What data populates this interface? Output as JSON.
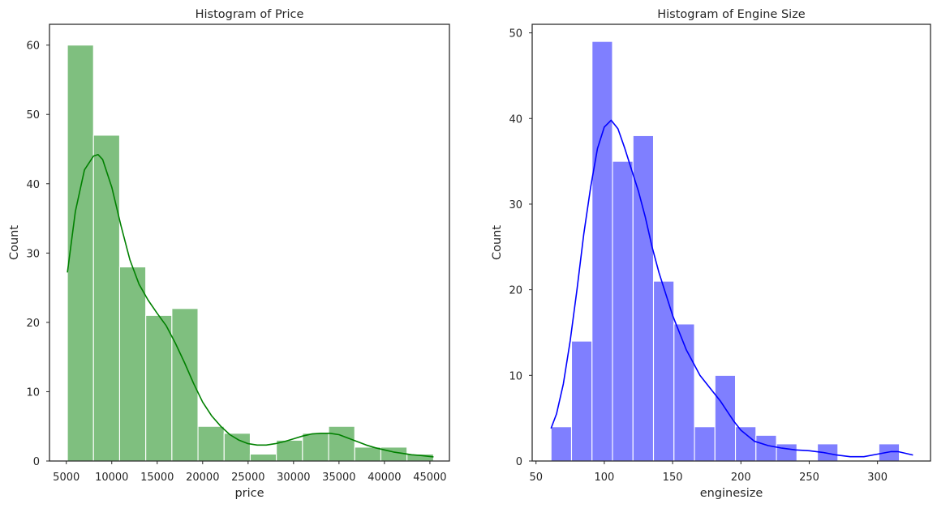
{
  "chart_data": [
    {
      "type": "bar",
      "title": "Histogram of Price",
      "xlabel": "price",
      "ylabel": "Count",
      "xlim": [
        3150,
        47150
      ],
      "ylim": [
        0,
        63
      ],
      "xticks": [
        5000,
        10000,
        15000,
        20000,
        25000,
        30000,
        35000,
        40000,
        45000
      ],
      "yticks": [
        0,
        10,
        20,
        30,
        40,
        50,
        60
      ],
      "grid": false,
      "bar_color": "#008000",
      "bar_opacity": 0.5,
      "kde_color": "#008000",
      "bins": [
        {
          "start": 5118,
          "end": 7992,
          "count": 60
        },
        {
          "start": 7992,
          "end": 10866,
          "count": 47
        },
        {
          "start": 10866,
          "end": 13740,
          "count": 28
        },
        {
          "start": 13740,
          "end": 16614,
          "count": 21
        },
        {
          "start": 16614,
          "end": 19488,
          "count": 22
        },
        {
          "start": 19488,
          "end": 22362,
          "count": 5
        },
        {
          "start": 22362,
          "end": 25236,
          "count": 4
        },
        {
          "start": 25236,
          "end": 28110,
          "count": 1
        },
        {
          "start": 28110,
          "end": 30984,
          "count": 3
        },
        {
          "start": 30984,
          "end": 33858,
          "count": 4
        },
        {
          "start": 33858,
          "end": 36732,
          "count": 5
        },
        {
          "start": 36732,
          "end": 39606,
          "count": 2
        },
        {
          "start": 39606,
          "end": 42480,
          "count": 2
        },
        {
          "start": 42480,
          "end": 45400,
          "count": 1
        }
      ],
      "kde": {
        "x": [
          5118,
          6000,
          7000,
          8000,
          8500,
          9000,
          10000,
          11000,
          12000,
          13000,
          14000,
          15000,
          16000,
          17000,
          18000,
          19000,
          20000,
          21000,
          22000,
          23000,
          24000,
          25000,
          26000,
          27000,
          28000,
          29000,
          30000,
          31000,
          32000,
          33000,
          34000,
          35000,
          36000,
          37000,
          38000,
          39000,
          40000,
          41000,
          42000,
          43000,
          44000,
          45400
        ],
        "y": [
          27.2,
          36.0,
          42.0,
          44.0,
          44.2,
          43.5,
          39.5,
          34.0,
          29.0,
          25.5,
          23.2,
          21.3,
          19.5,
          17.0,
          14.2,
          11.2,
          8.5,
          6.5,
          5.0,
          3.8,
          3.0,
          2.5,
          2.3,
          2.3,
          2.5,
          2.8,
          3.2,
          3.6,
          3.9,
          4.0,
          4.0,
          3.8,
          3.3,
          2.8,
          2.3,
          1.9,
          1.6,
          1.3,
          1.1,
          0.9,
          0.8,
          0.6
        ]
      }
    },
    {
      "type": "bar",
      "title": "Histogram of Engine Size",
      "xlabel": "enginesize",
      "ylabel": "Count",
      "xlim": [
        47.2,
        338.8
      ],
      "ylim": [
        0,
        51
      ],
      "xticks": [
        50,
        100,
        150,
        200,
        250,
        300
      ],
      "yticks": [
        0,
        10,
        20,
        30,
        40,
        50
      ],
      "grid": false,
      "bar_color": "#0000ff",
      "bar_opacity": 0.5,
      "kde_color": "#0000ff",
      "bins": [
        {
          "start": 61,
          "end": 76,
          "count": 4
        },
        {
          "start": 76,
          "end": 91,
          "count": 14
        },
        {
          "start": 91,
          "end": 106,
          "count": 49
        },
        {
          "start": 106,
          "end": 121,
          "count": 35
        },
        {
          "start": 121,
          "end": 136,
          "count": 38
        },
        {
          "start": 136,
          "end": 151,
          "count": 21
        },
        {
          "start": 151,
          "end": 166,
          "count": 16
        },
        {
          "start": 166,
          "end": 181,
          "count": 4
        },
        {
          "start": 181,
          "end": 196,
          "count": 10
        },
        {
          "start": 196,
          "end": 211,
          "count": 4
        },
        {
          "start": 211,
          "end": 226,
          "count": 3
        },
        {
          "start": 226,
          "end": 241,
          "count": 2
        },
        {
          "start": 241,
          "end": 256,
          "count": 0
        },
        {
          "start": 256,
          "end": 271,
          "count": 2
        },
        {
          "start": 271,
          "end": 286,
          "count": 0
        },
        {
          "start": 286,
          "end": 301,
          "count": 0
        },
        {
          "start": 301,
          "end": 316,
          "count": 2
        }
      ],
      "kde": {
        "x": [
          61,
          65,
          70,
          75,
          80,
          85,
          90,
          95,
          100,
          105,
          110,
          115,
          120,
          125,
          130,
          135,
          140,
          145,
          150,
          155,
          160,
          165,
          170,
          175,
          180,
          185,
          190,
          195,
          200,
          210,
          220,
          230,
          240,
          250,
          260,
          270,
          280,
          290,
          300,
          310,
          315,
          326
        ],
        "y": [
          3.8,
          5.5,
          9.0,
          14.0,
          20.0,
          26.5,
          32.0,
          36.5,
          39.0,
          39.8,
          38.8,
          36.5,
          34.0,
          31.5,
          28.5,
          25.0,
          22.0,
          19.5,
          17.0,
          15.0,
          13.0,
          11.5,
          10.0,
          9.0,
          8.0,
          7.0,
          5.8,
          4.6,
          3.6,
          2.3,
          1.8,
          1.5,
          1.3,
          1.2,
          1.0,
          0.7,
          0.5,
          0.5,
          0.8,
          1.1,
          1.1,
          0.7
        ]
      }
    }
  ]
}
